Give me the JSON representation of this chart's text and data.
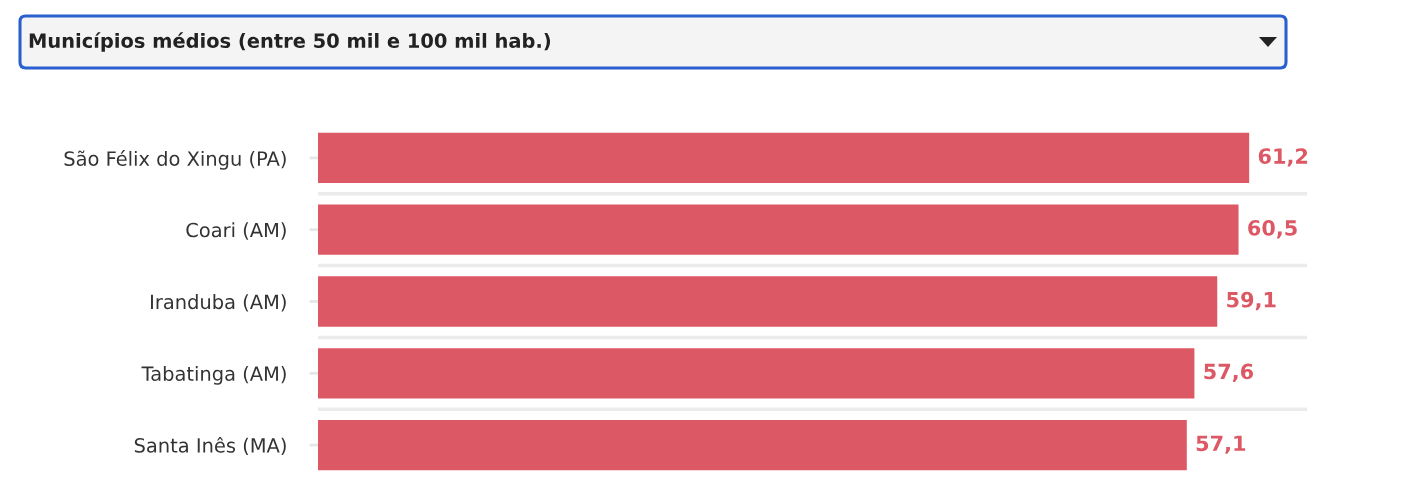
{
  "chart_data": {
    "type": "bar",
    "orientation": "horizontal",
    "title": "Municípios médios (entre 50 mil e 100 mil hab.)",
    "categories": [
      "São Félix do Xingu (PA)",
      "Coari (AM)",
      "Iranduba (AM)",
      "Tabatinga (AM)",
      "Santa Inês (MA)"
    ],
    "values": [
      61.2,
      60.5,
      59.1,
      57.6,
      57.1
    ],
    "color": "#dc5865",
    "value_labels": [
      "61,2",
      "60,5",
      "59,1",
      "57,6",
      "57,1"
    ],
    "xlim": [
      0,
      65
    ],
    "tick_labels": "y",
    "grid": "y"
  }
}
